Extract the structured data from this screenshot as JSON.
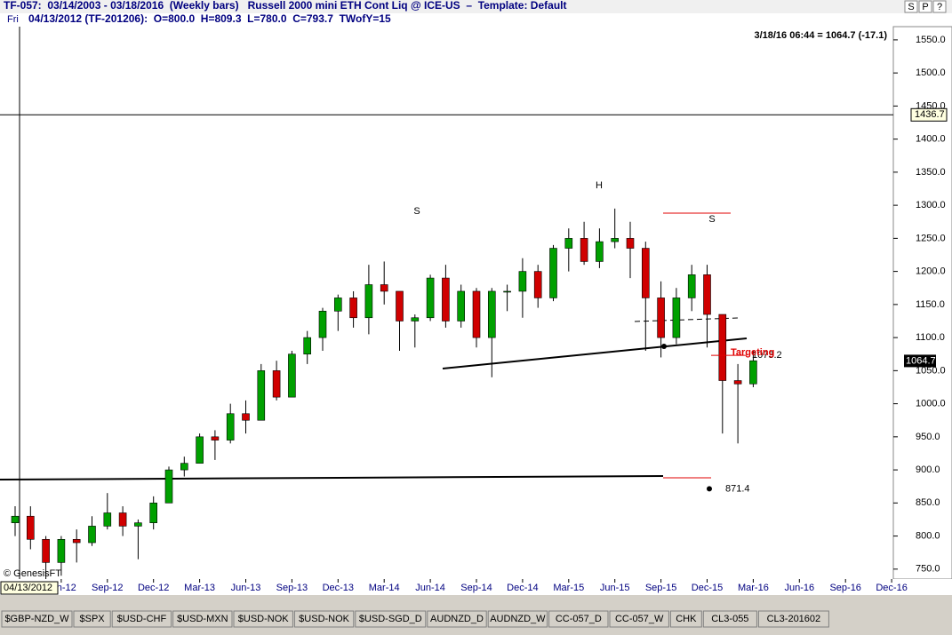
{
  "header": {
    "title": "TF-057:  03/14/2003 - 03/18/2016  (Weekly bars)   Russell 2000 mini ETH Cont Liq @ ICE-US  –  Template: Default",
    "day": "Fri",
    "info": "04/13/2012 (TF-201206):  O=800.0  H=809.3  L=780.0  C=793.7  TWofY=15",
    "buttons": [
      "S",
      "P",
      "?"
    ]
  },
  "chart_data": {
    "type": "candlestick",
    "x": [
      "Mar-12",
      "Apr-12",
      "May-12",
      "Jun-12",
      "Jul-12",
      "Aug-12",
      "Sep-12",
      "Oct-12",
      "Nov-12",
      "Dec-12",
      "Jan-13",
      "Feb-13",
      "Mar-13",
      "Apr-13",
      "May-13",
      "Jun-13",
      "Jul-13",
      "Aug-13",
      "Sep-13",
      "Oct-13",
      "Nov-13",
      "Dec-13",
      "Jan-14",
      "Feb-14",
      "Mar-14",
      "Apr-14",
      "May-14",
      "Jun-14",
      "Jul-14",
      "Aug-14",
      "Sep-14",
      "Oct-14",
      "Nov-14",
      "Dec-14",
      "Jan-15",
      "Feb-15",
      "Mar-15",
      "Apr-15",
      "May-15",
      "Jun-15",
      "Jul-15",
      "Aug-15",
      "Sep-15",
      "Oct-15",
      "Nov-15",
      "Dec-15",
      "Jan-16",
      "Feb-16",
      "Mar-16",
      "Apr-16",
      "May-16",
      "Jun-16",
      "Jul-16",
      "Aug-16",
      "Sep-16",
      "Oct-16",
      "Nov-16",
      "Dec-16"
    ],
    "open": [
      820,
      830,
      795,
      760,
      795,
      790,
      815,
      835,
      815,
      820,
      850,
      900,
      910,
      950,
      945,
      985,
      975,
      1050,
      1010,
      1075,
      1100,
      1140,
      1160,
      1130,
      1180,
      1170,
      1125,
      1130,
      1190,
      1125,
      1170,
      1100,
      1170,
      1170,
      1200,
      1160,
      1235,
      1250,
      1215,
      1245,
      1250,
      1235,
      1160,
      1100,
      1160,
      1195,
      1135,
      1035,
      1030,
      null,
      null,
      null,
      null,
      null,
      null,
      null,
      null,
      null
    ],
    "high": [
      845,
      845,
      800,
      800,
      810,
      830,
      865,
      845,
      825,
      860,
      905,
      920,
      955,
      960,
      1000,
      1005,
      1060,
      1065,
      1080,
      1110,
      1145,
      1165,
      1170,
      1210,
      1215,
      1170,
      1135,
      1195,
      1210,
      1180,
      1175,
      1175,
      1180,
      1220,
      1210,
      1240,
      1265,
      1275,
      1265,
      1295,
      1275,
      1245,
      1185,
      1175,
      1210,
      1210,
      1135,
      1060,
      1080,
      null,
      null,
      null,
      null,
      null,
      null,
      null,
      null,
      null
    ],
    "low": [
      800,
      780,
      735,
      740,
      760,
      785,
      810,
      800,
      765,
      810,
      850,
      890,
      910,
      915,
      940,
      955,
      975,
      1005,
      1010,
      1060,
      1080,
      1110,
      1115,
      1105,
      1150,
      1080,
      1085,
      1125,
      1115,
      1115,
      1085,
      1040,
      1140,
      1130,
      1145,
      1155,
      1200,
      1210,
      1205,
      1235,
      1190,
      1080,
      1070,
      1090,
      1140,
      1085,
      955,
      940,
      1025,
      null,
      null,
      null,
      null,
      null,
      null,
      null,
      null,
      null
    ],
    "close": [
      830,
      795,
      760,
      795,
      790,
      815,
      835,
      815,
      820,
      850,
      900,
      910,
      950,
      945,
      985,
      975,
      1050,
      1010,
      1075,
      1100,
      1140,
      1160,
      1130,
      1180,
      1170,
      1125,
      1130,
      1190,
      1125,
      1170,
      1100,
      1170,
      1170,
      1200,
      1160,
      1235,
      1250,
      1215,
      1245,
      1250,
      1235,
      1160,
      1100,
      1160,
      1195,
      1135,
      1035,
      1030,
      1065,
      null,
      null,
      null,
      null,
      null,
      null,
      null,
      null,
      null
    ],
    "up_color": "#00a000",
    "down_color": "#d00000",
    "ylim": [
      735,
      1570
    ],
    "yticks": [
      {
        "value": 750,
        "label": "750.0"
      },
      {
        "value": 800,
        "label": "800.0"
      },
      {
        "value": 850,
        "label": "850.0"
      },
      {
        "value": 900,
        "label": "900.0"
      },
      {
        "value": 950,
        "label": "950.0"
      },
      {
        "value": 1000,
        "label": "1000.0"
      },
      {
        "value": 1050,
        "label": "1050.0"
      },
      {
        "value": 1100,
        "label": "1100.0"
      },
      {
        "value": 1150,
        "label": "1150.0"
      },
      {
        "value": 1200,
        "label": "1200.0"
      },
      {
        "value": 1250,
        "label": "1250.0"
      },
      {
        "value": 1300,
        "label": "1300.0"
      },
      {
        "value": 1350,
        "label": "1350.0"
      },
      {
        "value": 1400,
        "label": "1400.0"
      },
      {
        "value": 1450,
        "label": "1450.0"
      },
      {
        "value": 1500,
        "label": "1500.0"
      },
      {
        "value": 1550,
        "label": "1550.0"
      }
    ],
    "xticks": [
      "Jun-12",
      "Sep-12",
      "Dec-12",
      "Mar-13",
      "Jun-13",
      "Sep-13",
      "Dec-13",
      "Mar-14",
      "Jun-14",
      "Sep-14",
      "Dec-14",
      "Mar-15",
      "Jun-15",
      "Sep-15",
      "Dec-15",
      "Mar-16",
      "Jun-16",
      "Sep-16",
      "Dec-16"
    ],
    "crosshair_price": 1436.7,
    "crosshair_date": "04/13/2012",
    "last_price": 1064.7,
    "last_info": "3/18/16 06:44 = 1064.7 (-17.1)",
    "levels": [
      871.4,
      1073.2
    ],
    "annotations": [
      "S",
      "H",
      "S",
      "Targeting"
    ],
    "copyright": "© GenesisFT"
  },
  "tabs": [
    "$GBP-NZD_W",
    "$SPX",
    "$USD-CHF",
    "$USD-MXN",
    "$USD-NOK",
    "$USD-NOK",
    "$USD-SGD_D",
    "AUDNZD_D",
    "AUDNZD_W",
    "CC-057_D",
    "CC-057_W",
    "CHK",
    "CL3-055",
    "CL3-201602"
  ]
}
